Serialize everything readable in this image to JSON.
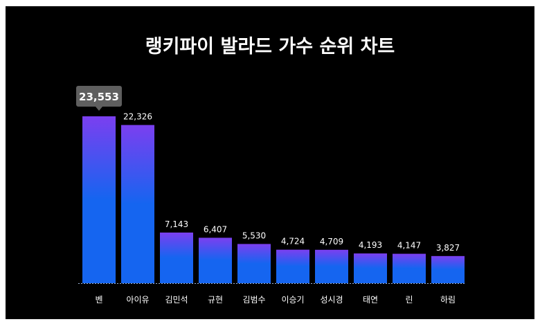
{
  "chart_data": {
    "type": "bar",
    "title": "랭키파이 발라드 가수 순위 차트",
    "categories": [
      "벤",
      "아이유",
      "김민석",
      "규현",
      "김범수",
      "이승기",
      "성시경",
      "태연",
      "린",
      "하림"
    ],
    "values": [
      23553,
      22326,
      7143,
      6407,
      5530,
      4724,
      4709,
      4193,
      4147,
      3827
    ],
    "value_labels": [
      "23,553",
      "22,326",
      "7,143",
      "6,407",
      "5,530",
      "4,724",
      "4,709",
      "4,193",
      "4,147",
      "3,827"
    ],
    "highlighted_index": 0,
    "xlabel": "",
    "ylabel": "",
    "grid": false,
    "legend": "none",
    "colors": {
      "background": "#000000",
      "bar_top": "#7b3ff0",
      "bar_bottom": "#1565f0",
      "text": "#ffffff",
      "tooltip": "#5f5f5f",
      "baseline": "#9fb4d8"
    }
  }
}
